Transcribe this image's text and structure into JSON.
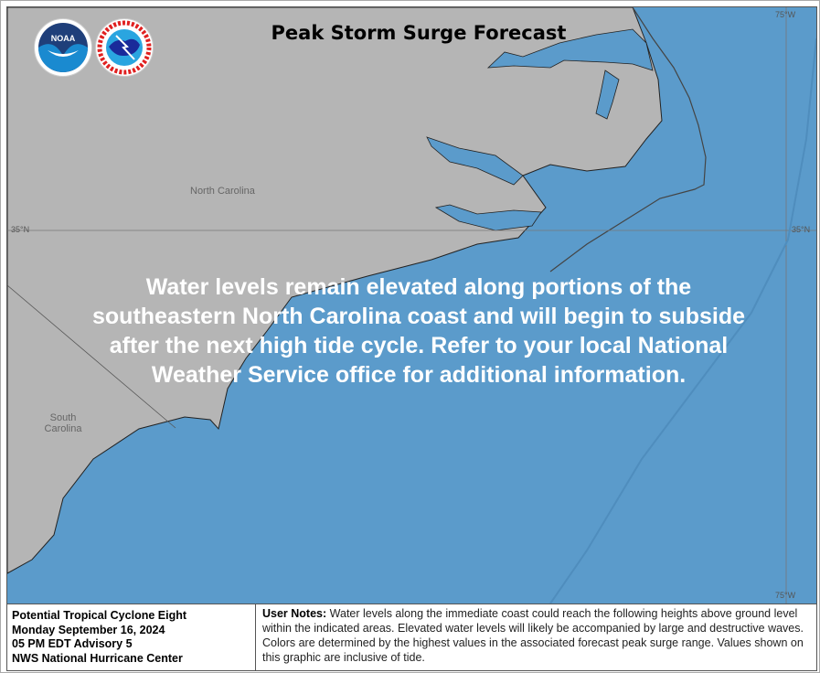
{
  "map": {
    "title": "Peak Storm Surge Forecast",
    "state_labels": [
      "North Carolina",
      "South Carolina"
    ],
    "latitude_label": "35°N",
    "longitude_label": "75°W",
    "overlay_message": "Water levels remain elevated along portions of the southeastern North Carolina coast and will begin to subside after the next high tide cycle. Refer to your local National Weather Service office for additional information.",
    "logos": [
      "NOAA",
      "National Weather Service"
    ],
    "colors": {
      "water": "#5b9bcb",
      "land": "#b5b5b5",
      "text_overlay": "#ffffff"
    }
  },
  "footer": {
    "storm_info": [
      "Potential Tropical Cyclone Eight",
      "Monday September 16, 2024",
      "05 PM EDT Advisory 5",
      "NWS National Hurricane Center"
    ],
    "notes_label": "User Notes:",
    "notes_text": "Water levels along the immediate coast could reach the following heights above ground level within the indicated areas. Elevated water levels will likely be accompanied by large and destructive waves. Colors are determined by the highest values in the associated forecast peak surge range. Values shown on this graphic are inclusive of tide."
  }
}
